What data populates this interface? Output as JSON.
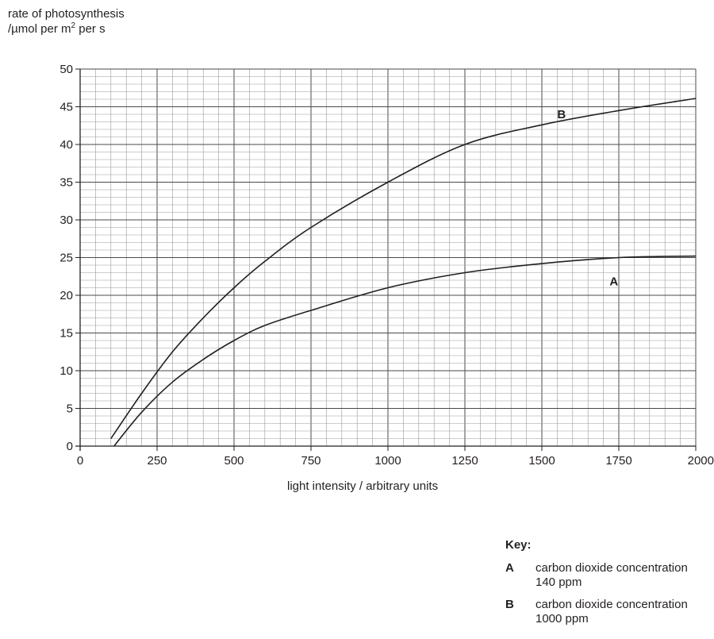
{
  "chart_data": {
    "type": "line",
    "ylabel_line1": "rate of photosynthesis",
    "ylabel_line2_prefix": "/µmol per m",
    "ylabel_line2_sup": "2",
    "ylabel_line2_suffix": " per s",
    "xlabel": "light intensity / arbitrary units",
    "xlim": [
      0,
      2000
    ],
    "ylim": [
      0,
      50
    ],
    "x_ticks": [
      0,
      250,
      500,
      750,
      1000,
      1250,
      1500,
      1750,
      2000
    ],
    "y_ticks": [
      0,
      5,
      10,
      15,
      20,
      25,
      30,
      35,
      40,
      45,
      50
    ],
    "grid": true,
    "series": [
      {
        "name": "A",
        "x": [
          110,
          200,
          300,
          400,
          500,
          600,
          750,
          1000,
          1250,
          1500,
          1750,
          2000
        ],
        "y": [
          0,
          4.5,
          8.5,
          11.5,
          14,
          16,
          18,
          21,
          23,
          24.2,
          25,
          25.2
        ]
      },
      {
        "name": "B",
        "x": [
          100,
          200,
          300,
          400,
          500,
          600,
          750,
          1000,
          1250,
          1500,
          1750,
          2000
        ],
        "y": [
          1,
          7,
          12.5,
          17,
          21,
          24.5,
          29,
          35,
          40,
          42.6,
          44.5,
          46.1
        ]
      }
    ],
    "key": {
      "title": "Key:",
      "items": [
        {
          "letter": "A",
          "line1": "carbon dioxide concentration",
          "line2": "140 ppm"
        },
        {
          "letter": "B",
          "line1": "carbon dioxide concentration",
          "line2": "1000 ppm"
        }
      ]
    }
  }
}
